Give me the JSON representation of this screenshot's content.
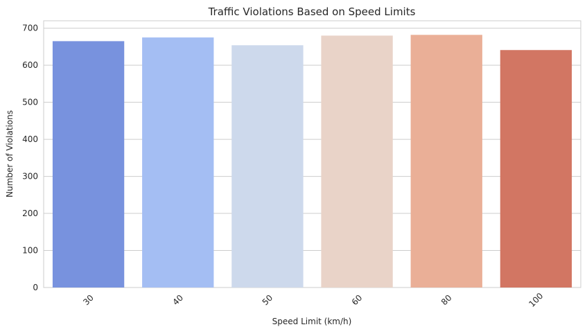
{
  "chart_data": {
    "type": "bar",
    "title": "Traffic Violations Based on Speed Limits",
    "xlabel": "Speed Limit (km/h)",
    "ylabel": "Number of Violations",
    "categories": [
      "30",
      "40",
      "50",
      "60",
      "80",
      "100"
    ],
    "values": [
      665,
      675,
      654,
      680,
      682,
      641
    ],
    "colors": [
      "#7892de",
      "#a4bef3",
      "#cdd9ec",
      "#e9d3c8",
      "#eaaf97",
      "#d27663"
    ],
    "ylim": [
      0,
      720
    ],
    "yticks": [
      0,
      100,
      200,
      300,
      400,
      500,
      600,
      700
    ],
    "grid": "horizontal",
    "xtick_rotation": 45
  }
}
